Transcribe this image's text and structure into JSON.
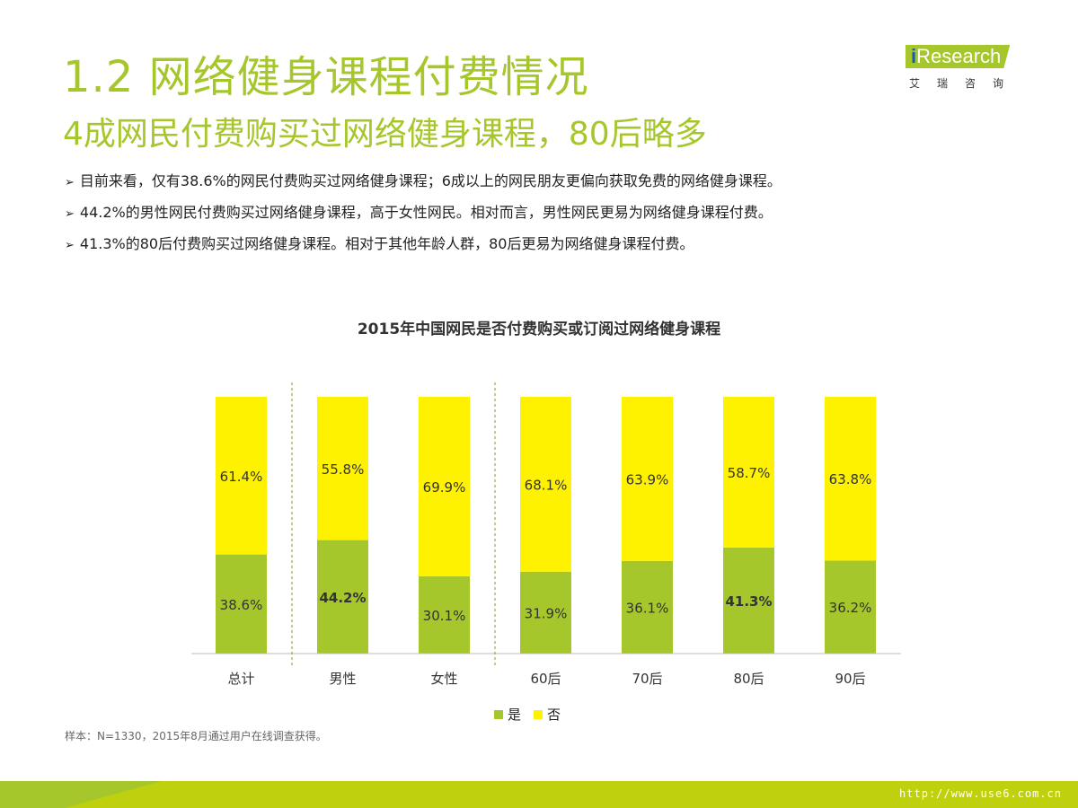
{
  "header": {
    "title": "1.2 网络健身课程付费情况",
    "subtitle": "4成网民付费购买过网络健身课程，80后略多"
  },
  "logo": {
    "brand_i": "i",
    "brand_text": "Research",
    "chinese": "艾瑞咨询"
  },
  "bullets": [
    "目前来看，仅有38.6%的网民付费购买过网络健身课程；6成以上的网民朋友更偏向获取免费的网络健身课程。",
    "44.2%的男性网民付费购买过网络健身课程，高于女性网民。相对而言，男性网民更易为网络健身课程付费。",
    "41.3%的80后付费购买过网络健身课程。相对于其他年龄人群，80后更易为网络健身课程付费。"
  ],
  "bullet_mark": "➢",
  "legend": {
    "yes": "是",
    "no": "否"
  },
  "footnote": "样本：N=1330，2015年8月通过用户在线调查获得。",
  "watermark": "http://www.use6.com.cn",
  "colors": {
    "accent": "#a6c72b",
    "yes": "#a6c72b",
    "no": "#fff200",
    "footer": "#bfd10e"
  },
  "chart_data": {
    "type": "bar",
    "stacked": true,
    "percent_stacked": true,
    "title": "2015年中国网民是否付费购买或订阅过网络健身课程",
    "categories": [
      "总计",
      "男性",
      "女性",
      "60后",
      "70后",
      "80后",
      "90后"
    ],
    "series": [
      {
        "name": "是",
        "values": [
          38.6,
          44.2,
          30.1,
          31.9,
          36.1,
          41.3,
          36.2
        ]
      },
      {
        "name": "否",
        "values": [
          61.4,
          55.8,
          69.9,
          68.1,
          63.9,
          58.7,
          63.8
        ]
      }
    ],
    "labels": {
      "是": [
        "38.6%",
        "44.2%",
        "30.1%",
        "31.9%",
        "36.1%",
        "41.3%",
        "36.2%"
      ],
      "否": [
        "61.4%",
        "55.8%",
        "69.9%",
        "68.1%",
        "63.9%",
        "58.7%",
        "63.8%"
      ]
    },
    "bold_labels": [
      "44.2%",
      "41.3%"
    ],
    "group_separators_after": [
      "总计",
      "女性"
    ],
    "ylim": [
      0,
      100
    ],
    "xlabel": "",
    "ylabel": "",
    "grid": false,
    "legend": "bottom-center"
  }
}
